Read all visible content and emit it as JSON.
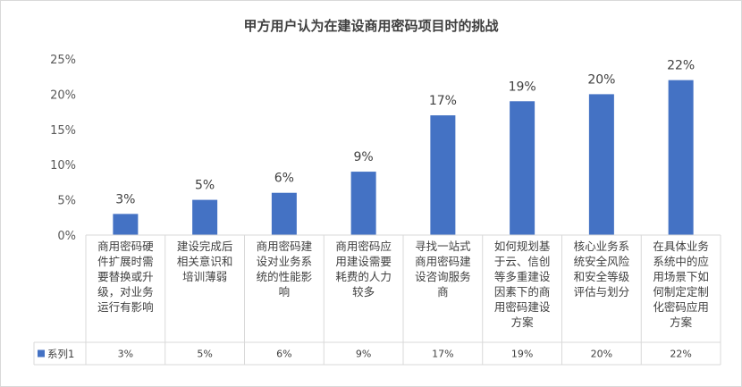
{
  "chart_data": {
    "type": "bar",
    "title": "甲方用户认为在建设商用密码项目时的挑战",
    "categories": [
      "商用密码硬件扩展时需要替换或升级，对业务运行有影响",
      "建设完成后相关意识和培训薄弱",
      "商用密码建设对业务系统的性能影响",
      "商用密码应用建设需要耗费的人力较多",
      "寻找一站式商用密码建设咨询服务商",
      "如何规划基于云、信创等多重建设因素下的商用密码建设方案",
      "核心业务系统安全风险和安全等级评估与划分",
      "在具体业务系统中的应用场景下如何制定定制化密码应用方案"
    ],
    "category_lines": [
      [
        "商用密码硬",
        "件扩展时需",
        "要替换或升",
        "级，对业务",
        "运行有影响"
      ],
      [
        "建设完成后",
        "相关意识和",
        "培训薄弱"
      ],
      [
        "商用密码建",
        "设对业务系",
        "统的性能影",
        "响"
      ],
      [
        "商用密码应",
        "用建设需要",
        "耗费的人力",
        "较多"
      ],
      [
        "寻找一站式",
        "商用密码建",
        "设咨询服务",
        "商"
      ],
      [
        "如何规划基",
        "于云、信创",
        "等多重建设",
        "因素下的商",
        "用密码建设",
        "方案"
      ],
      [
        "核心业务系",
        "统安全风险",
        "和安全等级",
        "评估与划分"
      ],
      [
        "在具体业务",
        "系统中的应",
        "用场景下如",
        "何制定定制",
        "化密码应用",
        "方案"
      ]
    ],
    "series": [
      {
        "name": "系列1",
        "values": [
          0.03,
          0.05,
          0.06,
          0.09,
          0.17,
          0.19,
          0.2,
          0.22
        ],
        "labels": [
          "3%",
          "5%",
          "6%",
          "9%",
          "17%",
          "19%",
          "20%",
          "22%"
        ],
        "color": "#4472C4"
      }
    ],
    "ylim": [
      0,
      0.25
    ],
    "yticks": [
      0,
      0.05,
      0.1,
      0.15,
      0.2,
      0.25
    ],
    "ytick_labels": [
      "0%",
      "5%",
      "10%",
      "15%",
      "20%",
      "25%"
    ],
    "grid": false,
    "legend": "data-table",
    "xlabel": "",
    "ylabel": ""
  }
}
